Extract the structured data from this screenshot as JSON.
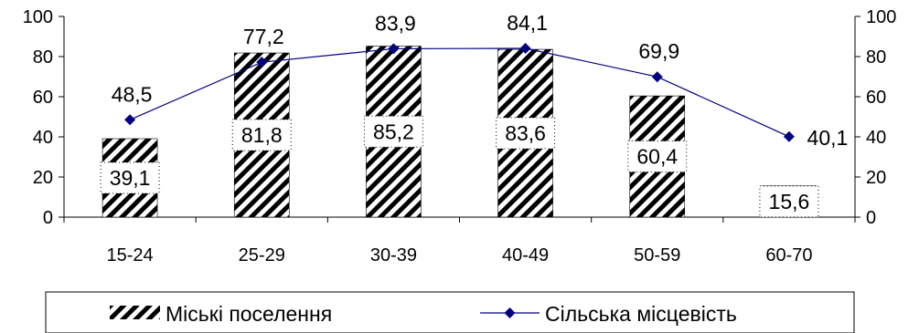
{
  "chart_data": {
    "type": "bar",
    "categories": [
      "15-24",
      "25-29",
      "30-39",
      "40-49",
      "50-59",
      "60-70"
    ],
    "series": [
      {
        "name": "Міські поселення",
        "kind": "bar",
        "values": [
          39.1,
          81.8,
          85.2,
          83.6,
          60.4,
          15.6
        ],
        "labels": [
          "39,1",
          "81,8",
          "85,2",
          "83,6",
          "60,4",
          "15,6"
        ]
      },
      {
        "name": "Сільська місцевість",
        "kind": "line",
        "color": "#000080",
        "values": [
          48.5,
          77.2,
          83.9,
          84.1,
          69.9,
          40.1
        ],
        "labels": [
          "48,5",
          "77,2",
          "83,9",
          "84,1",
          "69,9",
          "40,1"
        ]
      }
    ],
    "ylim": [
      0,
      100
    ],
    "yticks": [
      0,
      20,
      40,
      60,
      80,
      100
    ],
    "secondary_y": true,
    "legend_position": "bottom",
    "grid": false
  }
}
